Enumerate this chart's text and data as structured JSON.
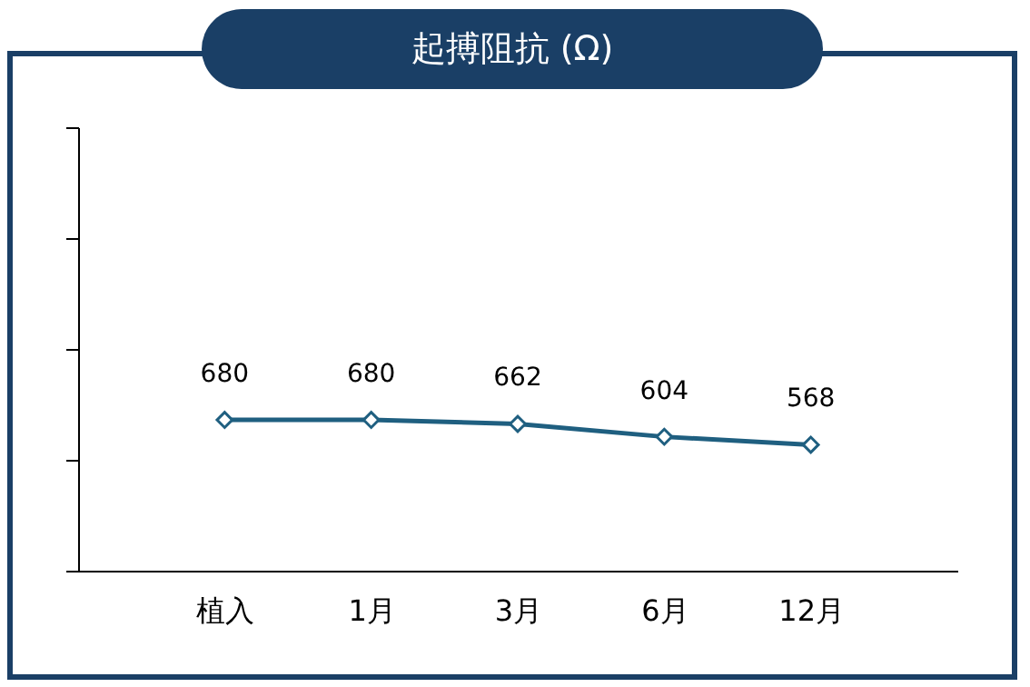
{
  "chart_data": {
    "type": "line",
    "title": "起搏阻抗 (Ω)",
    "categories": [
      "植入",
      "1月",
      "3月",
      "6月",
      "12月"
    ],
    "series": [
      {
        "color": "#1f5f80",
        "values": [
          680,
          680,
          662,
          604,
          568
        ]
      }
    ],
    "ylim": [
      0,
      2000
    ],
    "yticks": [
      {
        "value": 0,
        "label": null
      },
      {
        "value": 500,
        "label": null
      },
      {
        "value": 1000,
        "label": null
      },
      {
        "value": 1500,
        "label": null
      },
      {
        "value": 2000,
        "label": null
      }
    ],
    "tick_labels": "x",
    "data_labels": true,
    "marker": "diamond",
    "line_style": "solid"
  }
}
